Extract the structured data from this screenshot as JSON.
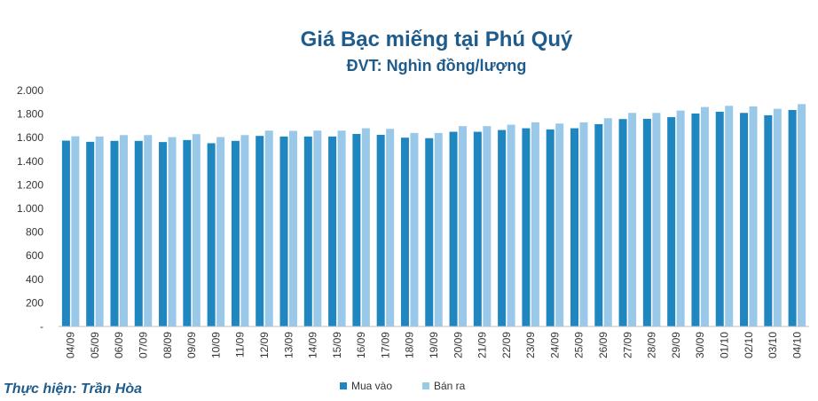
{
  "colors": {
    "buy": "#1f86c0",
    "sell": "#9ac8e8",
    "title": "#1f5c8b"
  },
  "credit": "Thực hiện: Trần Hòa",
  "chart_data": {
    "type": "bar",
    "title": "Giá Bạc miếng tại Phú Quý",
    "subtitle": "ĐVT: Nghìn đồng/lượng",
    "xlabel": "",
    "ylabel": "",
    "ylim": [
      0,
      2000
    ],
    "y_ticks": [
      "-",
      "200",
      "400",
      "600",
      "800",
      "1.000",
      "1.200",
      "1.400",
      "1.600",
      "1.800",
      "2.000"
    ],
    "grid": false,
    "legend_position": "bottom",
    "categories": [
      "04/09",
      "05/09",
      "06/09",
      "07/09",
      "08/09",
      "09/09",
      "10/09",
      "11/09",
      "12/09",
      "13/09",
      "14/09",
      "15/09",
      "16/09",
      "17/09",
      "18/09",
      "19/09",
      "20/09",
      "21/09",
      "22/09",
      "23/09",
      "24/09",
      "25/09",
      "26/09",
      "27/09",
      "28/09",
      "29/09",
      "30/09",
      "01/10",
      "02/10",
      "03/10",
      "04/10"
    ],
    "series": [
      {
        "name": "Mua vào",
        "values": [
          1575,
          1565,
          1573,
          1573,
          1563,
          1580,
          1553,
          1573,
          1615,
          1610,
          1610,
          1610,
          1632,
          1624,
          1600,
          1596,
          1650,
          1650,
          1665,
          1680,
          1670,
          1680,
          1715,
          1758,
          1760,
          1774,
          1805,
          1820,
          1810,
          1790,
          1835
        ]
      },
      {
        "name": "Bán ra",
        "values": [
          1612,
          1610,
          1622,
          1622,
          1605,
          1630,
          1605,
          1622,
          1660,
          1658,
          1660,
          1660,
          1680,
          1675,
          1640,
          1640,
          1698,
          1698,
          1710,
          1730,
          1720,
          1730,
          1765,
          1810,
          1810,
          1830,
          1860,
          1870,
          1865,
          1845,
          1885
        ]
      }
    ]
  }
}
